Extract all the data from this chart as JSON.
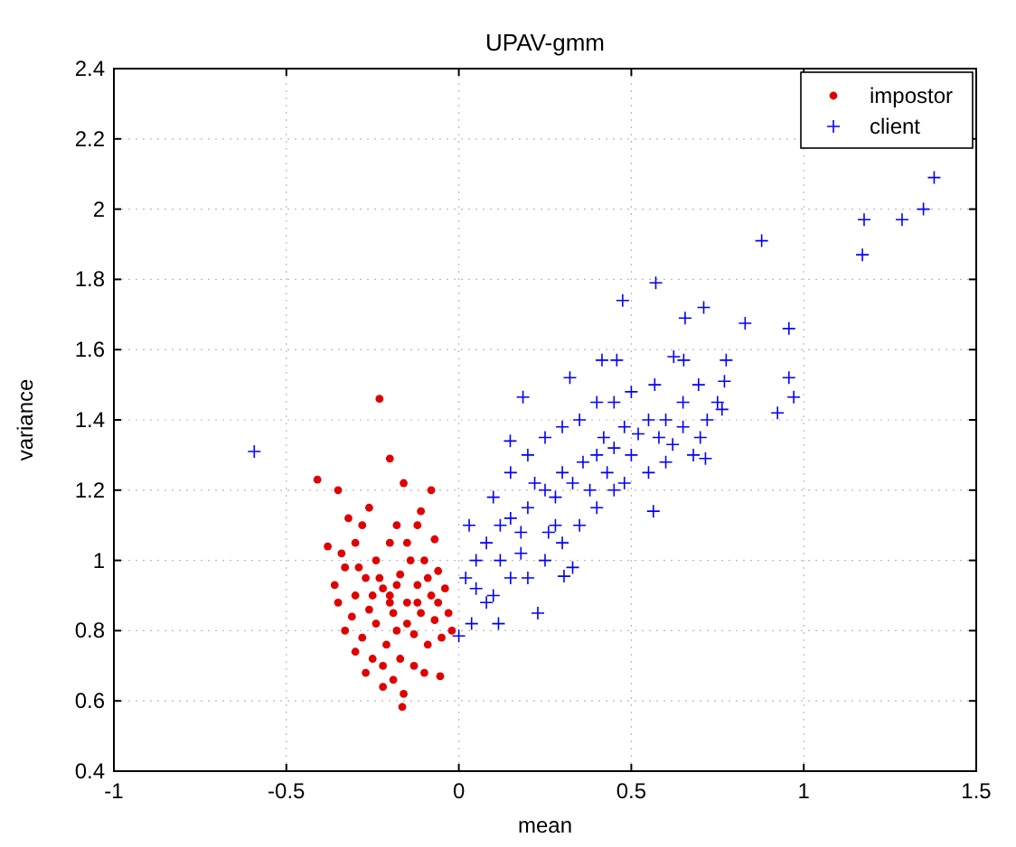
{
  "chart_data": {
    "type": "scatter",
    "title": "UPAV-gmm",
    "xlabel": "mean",
    "ylabel": "variance",
    "xlim": [
      -1,
      1.5
    ],
    "xticks": [
      -1,
      -0.5,
      0,
      0.5,
      1,
      1.5
    ],
    "ylim": [
      0.4,
      2.4
    ],
    "yticks": [
      0.4,
      0.6,
      0.8,
      1,
      1.2,
      1.4,
      1.6,
      1.8,
      2,
      2.2,
      2.4
    ],
    "grid": true,
    "legend": "top right",
    "series": [
      {
        "name": "impostor",
        "color": "#e00000",
        "marker": "circle",
        "x": [
          -0.41,
          -0.35,
          -0.23,
          -0.2,
          -0.16,
          -0.12,
          -0.08,
          -0.28,
          -0.3,
          -0.38,
          -0.33,
          -0.36,
          -0.3,
          -0.27,
          -0.24,
          -0.2,
          -0.15,
          -0.1,
          -0.06,
          -0.04,
          -0.08,
          -0.12,
          -0.17,
          -0.22,
          -0.26,
          -0.31,
          -0.35,
          -0.33,
          -0.28,
          -0.24,
          -0.19,
          -0.15,
          -0.11,
          -0.07,
          -0.05,
          -0.09,
          -0.13,
          -0.18,
          -0.21,
          -0.25,
          -0.3,
          -0.22,
          -0.17,
          -0.13,
          -0.1,
          -0.054,
          -0.22,
          -0.16,
          -0.164,
          -0.19,
          -0.27,
          -0.2,
          -0.23,
          -0.14,
          -0.18,
          -0.26,
          -0.32,
          -0.11,
          -0.07,
          -0.15,
          -0.2,
          -0.25,
          -0.18,
          -0.12,
          -0.29,
          -0.34,
          -0.09,
          -0.03,
          -0.02,
          -0.06
        ],
        "values": [
          1.23,
          1.2,
          1.46,
          1.29,
          1.22,
          1.1,
          1.2,
          1.1,
          1.05,
          1.04,
          0.98,
          0.93,
          0.9,
          0.95,
          1.0,
          1.05,
          1.05,
          1.0,
          0.97,
          0.92,
          0.9,
          0.93,
          0.96,
          0.92,
          0.86,
          0.84,
          0.88,
          0.8,
          0.78,
          0.82,
          0.85,
          0.88,
          0.85,
          0.83,
          0.78,
          0.76,
          0.79,
          0.8,
          0.76,
          0.72,
          0.74,
          0.7,
          0.72,
          0.7,
          0.68,
          0.67,
          0.64,
          0.62,
          0.583,
          0.66,
          0.68,
          0.88,
          0.95,
          1.0,
          1.1,
          1.15,
          1.12,
          1.14,
          1.06,
          0.82,
          0.9,
          0.9,
          0.93,
          0.88,
          0.98,
          1.02,
          0.95,
          0.85,
          0.8,
          0.88
        ]
      },
      {
        "name": "client",
        "color": "#0000ff",
        "marker": "cross",
        "x": [
          1.378,
          1.347,
          1.285,
          1.175,
          1.17,
          0.878,
          0.571,
          0.475,
          0.71,
          0.656,
          0.83,
          0.957,
          0.623,
          0.652,
          0.775,
          0.458,
          0.415,
          0.322,
          0.957,
          0.971,
          0.924,
          0.763,
          0.77,
          0.695,
          0.568,
          0.186,
          0.149,
          -0.593,
          0.564,
          0.715,
          0.115,
          0.037,
          0.229,
          0.0,
          0.305,
          0.05,
          0.08,
          0.12,
          0.15,
          0.18,
          0.2,
          0.25,
          0.28,
          0.3,
          0.33,
          0.36,
          0.4,
          0.42,
          0.45,
          0.48,
          0.5,
          0.52,
          0.55,
          0.58,
          0.6,
          0.62,
          0.65,
          0.68,
          0.72,
          0.75,
          0.35,
          0.3,
          0.25,
          0.4,
          0.45,
          0.5,
          0.55,
          0.45,
          0.4,
          0.35,
          0.3,
          0.25,
          0.2,
          0.15,
          0.1,
          0.05,
          0.03,
          0.1,
          0.15,
          0.2,
          0.22,
          0.28,
          0.33,
          0.38,
          0.43,
          0.48,
          0.6,
          0.65,
          0.7,
          0.12,
          0.08,
          0.18,
          0.26,
          0.02
        ],
        "values": [
          2.09,
          2.0,
          1.97,
          1.97,
          1.87,
          1.91,
          1.79,
          1.74,
          1.72,
          1.69,
          1.675,
          1.66,
          1.58,
          1.57,
          1.57,
          1.57,
          1.57,
          1.52,
          1.52,
          1.465,
          1.42,
          1.43,
          1.51,
          1.5,
          1.5,
          1.465,
          1.34,
          1.31,
          1.14,
          1.29,
          0.82,
          0.82,
          0.85,
          0.785,
          0.955,
          1.0,
          1.05,
          1.1,
          1.12,
          1.08,
          1.15,
          1.2,
          1.18,
          1.25,
          1.22,
          1.28,
          1.3,
          1.35,
          1.32,
          1.38,
          1.3,
          1.36,
          1.4,
          1.35,
          1.4,
          1.33,
          1.38,
          1.3,
          1.4,
          1.45,
          1.4,
          1.38,
          1.35,
          1.45,
          1.45,
          1.48,
          1.25,
          1.2,
          1.15,
          1.1,
          1.05,
          1.0,
          0.95,
          0.95,
          0.9,
          0.92,
          1.1,
          1.18,
          1.25,
          1.3,
          1.22,
          1.1,
          0.98,
          1.2,
          1.25,
          1.22,
          1.28,
          1.45,
          1.35,
          1.0,
          0.88,
          1.02,
          1.08,
          0.95
        ]
      }
    ]
  }
}
